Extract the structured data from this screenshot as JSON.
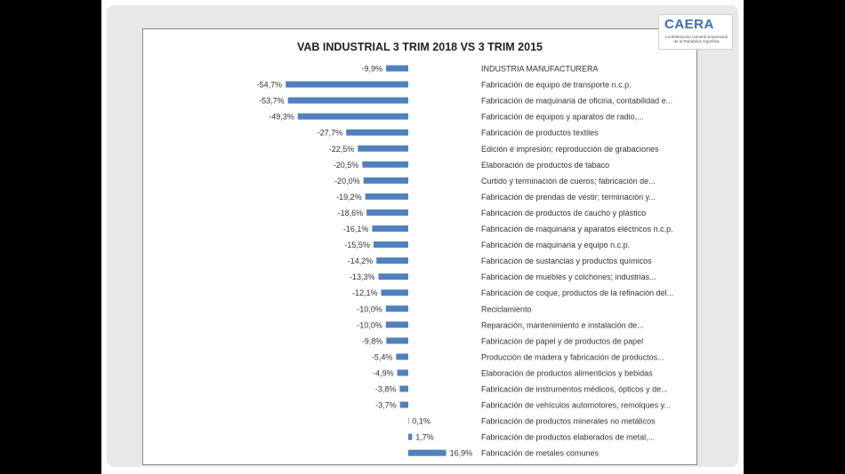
{
  "logo": {
    "mark": "CAERA",
    "subtitle": "Confederación General Empresaria de la República Argentina"
  },
  "colors": {
    "bar": "#4f81bd",
    "text": "#333333"
  },
  "chart_data": {
    "type": "bar",
    "orientation": "horizontal",
    "title": "VAB INDUSTRIAL 3 TRIM 2018 VS 3 TRIM 2015",
    "xlabel": "",
    "ylabel": "",
    "xlim": [
      -60,
      20
    ],
    "grid": false,
    "legend": "none",
    "value_format": "percent-comma-1dp",
    "categories": [
      "INDUSTRIA MANUFACTURERA",
      "Fabricación de equipo de transporte n.c.p.",
      "Fabricación de maquinaria de oficina, contabilidad e...",
      "Fabricación de equipos y aparatos de radio,...",
      "Fabricación de productos textiles",
      "Edición e impresión; reproducción de grabaciones",
      "Elaboración de productos de tabaco",
      "Curtido y terminación de cueros; fabricación de...",
      "Fabricación de prendas de vestir; terminación y...",
      "Fabricación de productos de caucho y plástico",
      "Fabricación de maquinaria y aparatos eléctricos  n.c.p.",
      "Fabricación de maquinaria y equipo n.c.p.",
      "Fabricación de sustancias y productos químicos",
      "Fabricación de muebles y colchones; industrias...",
      "Fabricación de coque, productos de la refinación del...",
      "Reciclamiento",
      "Reparación, mantenimiento e instalación de...",
      "Fabricación de papel y de  productos de papel",
      "Producción de madera y fabricación de productos...",
      "Elaboración de productos alimenticios y bebidas",
      "Fabricación de instrumentos médicos, ópticos y de...",
      "Fabricación de vehículos automotores, remolques y...",
      "Fabricación de productos minerales no metálicos",
      "Fabricación de productos elaborados de metal,...",
      "Fabricación de metales comunes"
    ],
    "values": [
      -9.9,
      -54.7,
      -53.7,
      -49.3,
      -27.7,
      -22.5,
      -20.5,
      -20.0,
      -19.2,
      -18.6,
      -16.1,
      -15.5,
      -14.2,
      -13.3,
      -12.1,
      -10.0,
      -10.0,
      -9.8,
      -5.4,
      -4.9,
      -3.8,
      -3.7,
      0.1,
      1.7,
      16.9
    ],
    "value_labels": [
      "-9,9%",
      "-54,7%",
      "-53,7%",
      "-49,3%",
      "-27,7%",
      "-22,5%",
      "-20,5%",
      "-20,0%",
      "-19,2%",
      "-18,6%",
      "-16,1%",
      "-15,5%",
      "-14,2%",
      "-13,3%",
      "-12,1%",
      "-10,0%",
      "-10,0%",
      "-9,8%",
      "-5,4%",
      "-4,9%",
      "-3,8%",
      "-3,7%",
      "0,1%",
      "1,7%",
      "16,9%"
    ]
  }
}
